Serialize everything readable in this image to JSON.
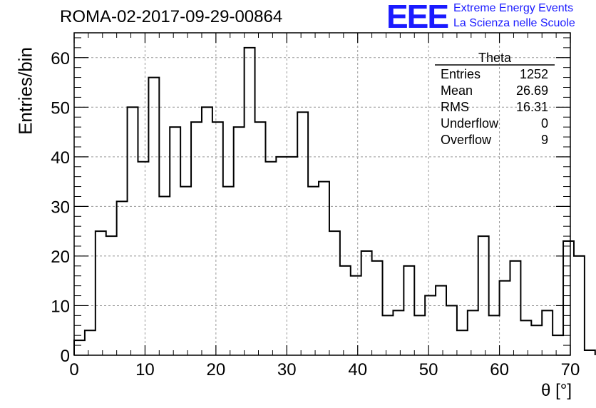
{
  "header": {
    "title": "ROMA-02-2017-09-29-00864"
  },
  "logo": {
    "mark": "EEE",
    "line1": "Extreme Energy Events",
    "line2": "La Scienza nelle Scuole",
    "color": "#1a1aff"
  },
  "stats_box": {
    "name": "Theta",
    "rows": [
      {
        "label": "Entries",
        "value": "1252"
      },
      {
        "label": "Mean",
        "value": "26.69"
      },
      {
        "label": "RMS",
        "value": "16.31"
      },
      {
        "label": "Underflow",
        "value": "0"
      },
      {
        "label": "Overflow",
        "value": "9"
      }
    ]
  },
  "chart_data": {
    "type": "bar",
    "style": "step-histogram",
    "xlabel": "θ [°]",
    "ylabel": "Entries/bin",
    "xlim": [
      0,
      70
    ],
    "ylim": [
      0,
      65
    ],
    "grid": true,
    "bin_width": 1.5,
    "bin_start": 0,
    "values": [
      3,
      5,
      25,
      24,
      31,
      50,
      39,
      56,
      32,
      46,
      34,
      47,
      50,
      47,
      34,
      46,
      62,
      47,
      39,
      40,
      40,
      49,
      34,
      35,
      25,
      18,
      16,
      21,
      19,
      8,
      9,
      18,
      8,
      12,
      14,
      10,
      5,
      9,
      24,
      8,
      15,
      19,
      7,
      6,
      9,
      4,
      23,
      20,
      1
    ],
    "xticks": [
      "0",
      "10",
      "20",
      "30",
      "40",
      "50",
      "60",
      "70"
    ],
    "yticks": [
      "0",
      "10",
      "20",
      "30",
      "40",
      "50",
      "60"
    ]
  }
}
